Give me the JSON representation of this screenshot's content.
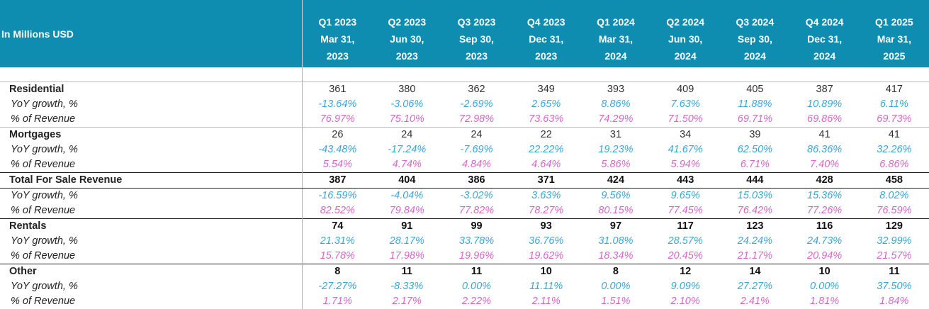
{
  "header": {
    "units_label": "In Millions USD",
    "quarters": [
      {
        "q": "Q1 2023",
        "date1": "Mar 31,",
        "date2": "2023"
      },
      {
        "q": "Q2 2023",
        "date1": "Jun 30,",
        "date2": "2023"
      },
      {
        "q": "Q3 2023",
        "date1": "Sep 30,",
        "date2": "2023"
      },
      {
        "q": "Q4 2023",
        "date1": "Dec 31,",
        "date2": "2023"
      },
      {
        "q": "Q1 2024",
        "date1": "Mar 31,",
        "date2": "2024"
      },
      {
        "q": "Q2 2024",
        "date1": "Jun 30,",
        "date2": "2024"
      },
      {
        "q": "Q3 2024",
        "date1": "Sep 30,",
        "date2": "2024"
      },
      {
        "q": "Q4 2024",
        "date1": "Dec 31,",
        "date2": "2024"
      },
      {
        "q": "Q1 2025",
        "date1": "Mar 31,",
        "date2": "2025"
      }
    ]
  },
  "rows": [
    {
      "label": "Residential",
      "kind": "group",
      "bold_values": false,
      "values": [
        "361",
        "380",
        "362",
        "349",
        "393",
        "409",
        "405",
        "387",
        "417"
      ]
    },
    {
      "label": "YoY growth, %",
      "kind": "yoy",
      "values": [
        "-13.64%",
        "-3.06%",
        "-2.69%",
        "2.65%",
        "8.86%",
        "7.63%",
        "11.88%",
        "10.89%",
        "6.11%"
      ]
    },
    {
      "label": "% of Revenue",
      "kind": "pct",
      "values": [
        "76.97%",
        "75.10%",
        "72.98%",
        "73.63%",
        "74.29%",
        "71.50%",
        "69.71%",
        "69.86%",
        "69.73%"
      ]
    },
    {
      "label": "Mortgages",
      "kind": "group",
      "bold_values": false,
      "values": [
        "26",
        "24",
        "24",
        "22",
        "31",
        "34",
        "39",
        "41",
        "41"
      ]
    },
    {
      "label": "YoY growth, %",
      "kind": "yoy",
      "values": [
        "-43.48%",
        "-17.24%",
        "-7.69%",
        "22.22%",
        "19.23%",
        "41.67%",
        "62.50%",
        "86.36%",
        "32.26%"
      ]
    },
    {
      "label": "% of Revenue",
      "kind": "pct",
      "values": [
        "5.54%",
        "4.74%",
        "4.84%",
        "4.64%",
        "5.86%",
        "5.94%",
        "6.71%",
        "7.40%",
        "6.86%"
      ]
    },
    {
      "label": "Total For Sale Revenue",
      "kind": "group",
      "bold_values": true,
      "values": [
        "387",
        "404",
        "386",
        "371",
        "424",
        "443",
        "444",
        "428",
        "458"
      ]
    },
    {
      "label": "YoY growth, %",
      "kind": "yoy",
      "values": [
        "-16.59%",
        "-4.04%",
        "-3.02%",
        "3.63%",
        "9.56%",
        "9.65%",
        "15.03%",
        "15.36%",
        "8.02%"
      ]
    },
    {
      "label": "% of Revenue",
      "kind": "pct",
      "values": [
        "82.52%",
        "79.84%",
        "77.82%",
        "78.27%",
        "80.15%",
        "77.45%",
        "76.42%",
        "77.26%",
        "76.59%"
      ]
    },
    {
      "label": "Rentals",
      "kind": "group",
      "bold_values": true,
      "values": [
        "74",
        "91",
        "99",
        "93",
        "97",
        "117",
        "123",
        "116",
        "129"
      ]
    },
    {
      "label": "YoY growth, %",
      "kind": "yoy",
      "values": [
        "21.31%",
        "28.17%",
        "33.78%",
        "36.76%",
        "31.08%",
        "28.57%",
        "24.24%",
        "24.73%",
        "32.99%"
      ]
    },
    {
      "label": "% of Revenue",
      "kind": "pct",
      "values": [
        "15.78%",
        "17.98%",
        "19.96%",
        "19.62%",
        "18.34%",
        "20.45%",
        "21.17%",
        "20.94%",
        "21.57%"
      ]
    },
    {
      "label": "Other",
      "kind": "group",
      "bold_values": true,
      "values": [
        "8",
        "11",
        "11",
        "10",
        "8",
        "12",
        "14",
        "10",
        "11"
      ]
    },
    {
      "label": "YoY growth, %",
      "kind": "yoy",
      "values": [
        "-27.27%",
        "-8.33%",
        "0.00%",
        "11.11%",
        "0.00%",
        "9.09%",
        "27.27%",
        "0.00%",
        "37.50%"
      ]
    },
    {
      "label": "% of Revenue",
      "kind": "pct",
      "values": [
        "1.71%",
        "2.17%",
        "2.22%",
        "2.11%",
        "1.51%",
        "2.10%",
        "2.41%",
        "1.81%",
        "1.84%"
      ]
    }
  ],
  "colors": {
    "header_bg": "#0e8db1",
    "yoy_text": "#3aa6d8",
    "pct_text": "#d567c8"
  }
}
